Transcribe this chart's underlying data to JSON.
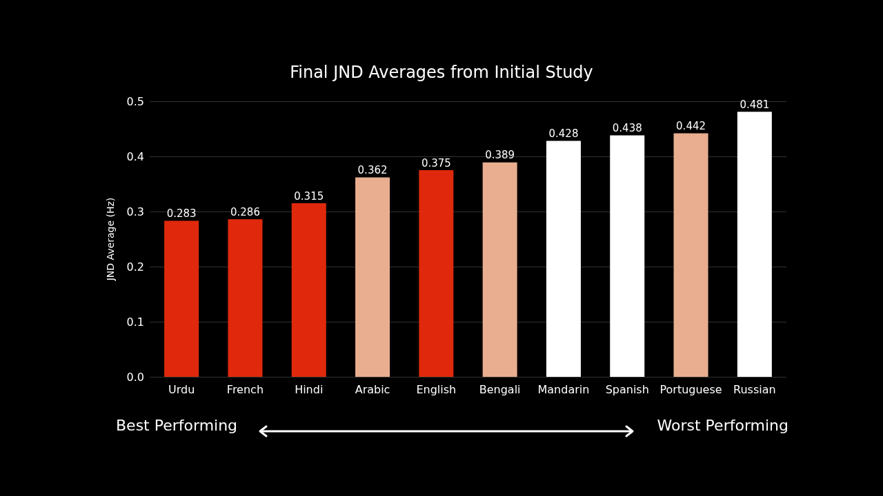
{
  "chart_data": {
    "type": "bar",
    "title": "Final JND Averages from Initial Study",
    "ylabel": "JND Average (Hz)",
    "categories": [
      "Urdu",
      "French",
      "Hindi",
      "Arabic",
      "English",
      "Bengali",
      "Mandarin",
      "Spanish",
      "Portuguese",
      "Russian"
    ],
    "values": [
      0.283,
      0.286,
      0.315,
      0.362,
      0.375,
      0.389,
      0.428,
      0.438,
      0.442,
      0.481
    ],
    "colors": [
      "#e0290c",
      "#e0290c",
      "#e0290c",
      "#e8ae8f",
      "#e0290c",
      "#e8ae8f",
      "#ffffff",
      "#ffffff",
      "#e8ae8f",
      "#ffffff"
    ],
    "ylim": [
      0,
      0.5
    ],
    "yticks": [
      {
        "value": 0,
        "label": "0.0"
      },
      0.1,
      0.2,
      0.3,
      0.4,
      0.5
    ],
    "grid": "y",
    "data_labels": true,
    "annotations": [
      "Best Performing",
      "Worst Performing"
    ]
  }
}
